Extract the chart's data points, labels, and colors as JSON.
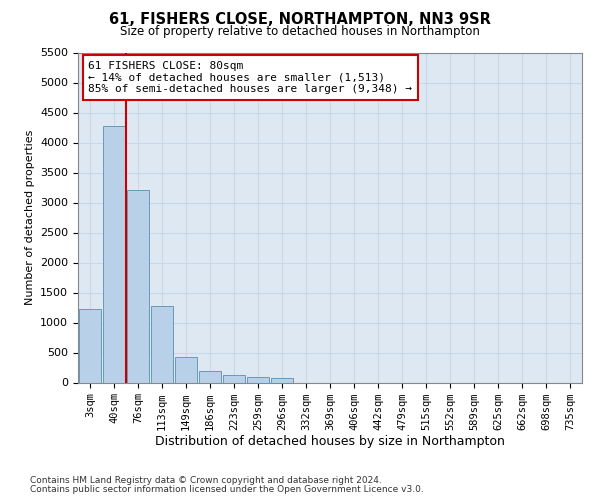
{
  "title": "61, FISHERS CLOSE, NORTHAMPTON, NN3 9SR",
  "subtitle": "Size of property relative to detached houses in Northampton",
  "xlabel": "Distribution of detached houses by size in Northampton",
  "ylabel": "Number of detached properties",
  "bar_labels": [
    "3sqm",
    "40sqm",
    "76sqm",
    "113sqm",
    "149sqm",
    "186sqm",
    "223sqm",
    "259sqm",
    "296sqm",
    "332sqm",
    "369sqm",
    "406sqm",
    "442sqm",
    "479sqm",
    "515sqm",
    "552sqm",
    "589sqm",
    "625sqm",
    "662sqm",
    "698sqm",
    "735sqm"
  ],
  "bar_values": [
    1230,
    4270,
    3210,
    1280,
    430,
    195,
    120,
    85,
    75,
    0,
    0,
    0,
    0,
    0,
    0,
    0,
    0,
    0,
    0,
    0,
    0
  ],
  "bar_color": "#b8d0e8",
  "bar_edge_color": "#6699bb",
  "grid_color": "#c8d8e8",
  "bg_color": "#dde8f2",
  "vline_index": 2,
  "vline_color": "#cc0000",
  "annotation_text": "61 FISHERS CLOSE: 80sqm\n← 14% of detached houses are smaller (1,513)\n85% of semi-detached houses are larger (9,348) →",
  "annotation_box_color": "#ffffff",
  "annotation_border_color": "#cc0000",
  "ylim": [
    0,
    5500
  ],
  "yticks": [
    0,
    500,
    1000,
    1500,
    2000,
    2500,
    3000,
    3500,
    4000,
    4500,
    5000,
    5500
  ],
  "footnote1": "Contains HM Land Registry data © Crown copyright and database right 2024.",
  "footnote2": "Contains public sector information licensed under the Open Government Licence v3.0."
}
